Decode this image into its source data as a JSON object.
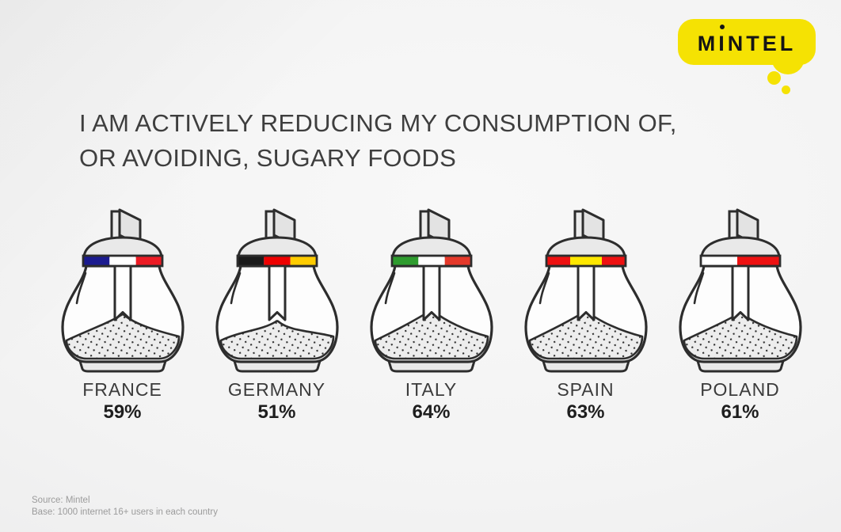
{
  "logo": {
    "text": "MINTEL",
    "bubble_color": "#F5E203",
    "text_color": "#151515"
  },
  "title": {
    "line1": "I AM ACTIVELY REDUCING MY CONSUMPTION OF,",
    "line2": "OR AVOIDING, SUGARY FOODS"
  },
  "chart_data": {
    "type": "bar",
    "variant": "pictogram-sugar-dispensers",
    "title": "I am actively reducing my consumption of, or avoiding, sugary foods",
    "categories": [
      "FRANCE",
      "GERMANY",
      "ITALY",
      "SPAIN",
      "POLAND"
    ],
    "values": [
      59,
      51,
      64,
      63,
      61
    ],
    "unit": "%",
    "value_labels": [
      "59%",
      "51%",
      "64%",
      "63%",
      "61%"
    ],
    "legend": "none",
    "notes": "each country shown as a glass sugar pourer wearing its national flag band; value printed below"
  },
  "countries": [
    {
      "name": "FRANCE",
      "value": "59%",
      "flag_colors": [
        "#1B1B8F",
        "#FFFFFF",
        "#EC1B24"
      ]
    },
    {
      "name": "GERMANY",
      "value": "51%",
      "flag_colors": [
        "#1A1A1A",
        "#EE0000",
        "#FFCC00"
      ]
    },
    {
      "name": "ITALY",
      "value": "64%",
      "flag_colors": [
        "#2E9B2E",
        "#FFFFFF",
        "#E5392A"
      ]
    },
    {
      "name": "SPAIN",
      "value": "63%",
      "flag_colors": [
        "#EE1111",
        "#FFE800",
        "#EE1111"
      ],
      "flag_widths": [
        30,
        40,
        30
      ]
    },
    {
      "name": "POLAND",
      "value": "61%",
      "flag_colors": [
        "#FFFFFF",
        "#EE1111"
      ],
      "flag_widths": [
        46,
        54
      ]
    }
  ],
  "footer": {
    "source": "Source: Mintel",
    "base": "Base: 1000 internet 16+ users in each country"
  },
  "colors": {
    "outline": "#2d2d2d",
    "glass": "#fdfdfd",
    "metal": "#e9e9e9",
    "sugar": "#ededed",
    "title_text": "#3e3e3e",
    "footer_text": "#9b9b9b"
  }
}
